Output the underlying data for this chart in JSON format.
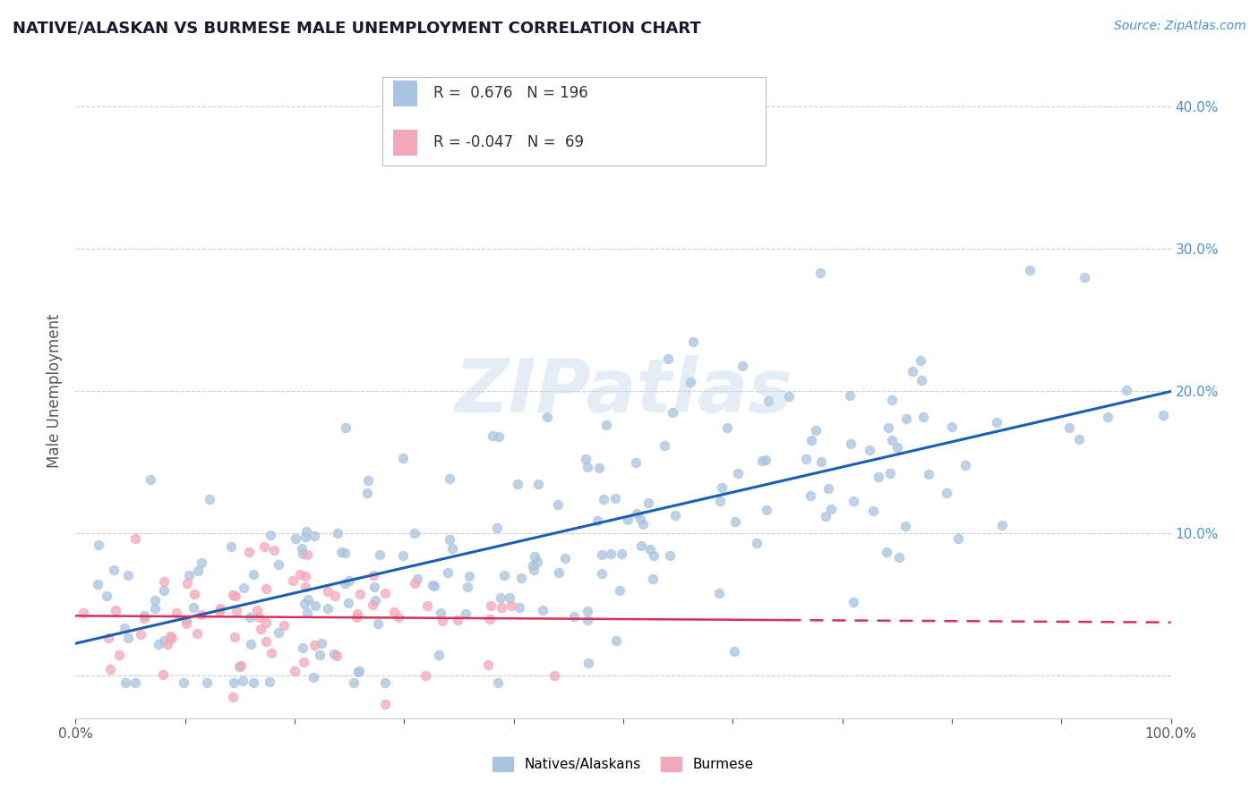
{
  "title": "NATIVE/ALASKAN VS BURMESE MALE UNEMPLOYMENT CORRELATION CHART",
  "source_text": "Source: ZipAtlas.com",
  "ylabel": "Male Unemployment",
  "x_min": 0.0,
  "x_max": 1.0,
  "y_min": -0.03,
  "y_max": 0.43,
  "r_native": 0.676,
  "n_native": 196,
  "r_burmese": -0.047,
  "n_burmese": 69,
  "native_color": "#a8c4e0",
  "burmese_color": "#f4a7b9",
  "native_line_color": "#1a5fb4",
  "burmese_line_color": "#d63060",
  "background_color": "#ffffff",
  "watermark_text": "ZIPatlas",
  "x_ticks": [
    0.0,
    0.1,
    0.2,
    0.3,
    0.4,
    0.5,
    0.6,
    0.7,
    0.8,
    0.9,
    1.0
  ],
  "x_tick_labels": [
    "0.0%",
    "",
    "",
    "",
    "",
    "",
    "",
    "",
    "",
    "",
    "100.0%"
  ],
  "y_ticks": [
    0.0,
    0.1,
    0.2,
    0.3,
    0.4
  ],
  "y_tick_labels": [
    "",
    "10.0%",
    "20.0%",
    "30.0%",
    "40.0%"
  ],
  "legend_label_native": "Natives/Alaskans",
  "legend_label_burmese": "Burmese",
  "legend_r_native": "R =  0.676   N = 196",
  "legend_r_burmese": "R = -0.047   N =  69"
}
